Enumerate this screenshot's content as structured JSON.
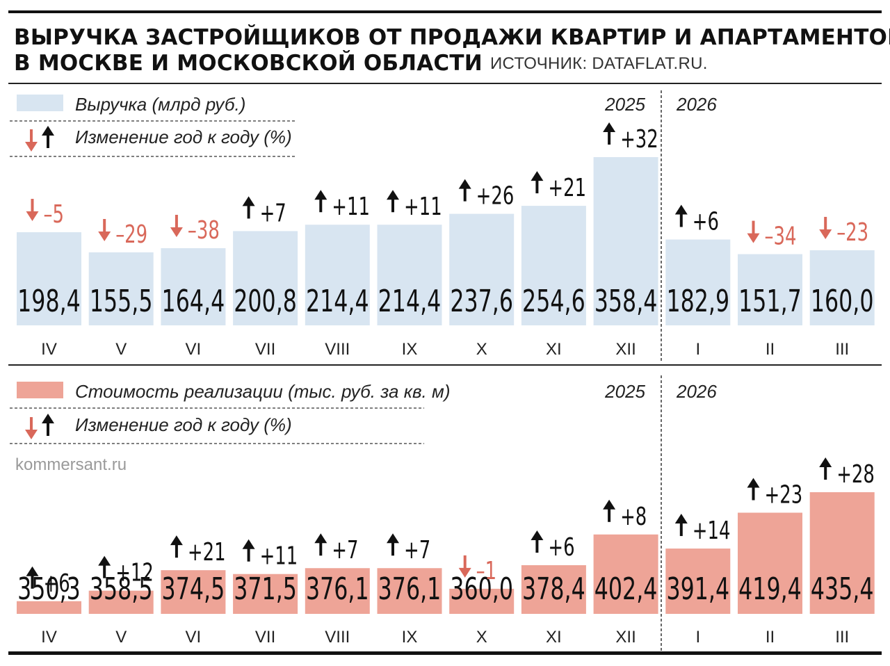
{
  "header": {
    "title_line1": "ВЫРУЧКА ЗАСТРОЙЩИКОВ ОТ ПРОДАЖИ КВАРТИР И АПАРТАМЕНТОВ",
    "title_line2": "В МОСКВЕ И МОСКОВСКОЙ ОБЛАСТИ",
    "source": "ИСТОЧНИК: DATAFLAT.RU."
  },
  "credit": "kommersant.ru",
  "colors": {
    "revenue_bar": "#d8e5f1",
    "price_bar": "#eea497",
    "increase": "#111111",
    "decrease": "#d9685a"
  },
  "chart_data": [
    {
      "type": "bar",
      "legend_value": "Выручка (млрд руб.)",
      "legend_change": "Изменение год к году (%)",
      "years": [
        "2025",
        "2026"
      ],
      "categories": [
        "IV",
        "V",
        "VI",
        "VII",
        "VIII",
        "IX",
        "X",
        "XI",
        "XII",
        "I",
        "II",
        "III"
      ],
      "values": [
        198.4,
        155.5,
        164.4,
        200.8,
        214.4,
        214.4,
        237.6,
        254.6,
        358.4,
        182.9,
        151.7,
        160.0
      ],
      "value_labels": [
        "198,4",
        "155,5",
        "164,4",
        "200,8",
        "214,4",
        "214,4",
        "237,6",
        "254,6",
        "358,4",
        "182,9",
        "151,7",
        "160,0"
      ],
      "change_labels": [
        "–5",
        "–29",
        "–38",
        "+7",
        "+11",
        "+11",
        "+26",
        "+21",
        "+32",
        "+6",
        "–34",
        "–23"
      ],
      "change_directions": [
        "down",
        "down",
        "down",
        "up",
        "up",
        "up",
        "up",
        "up",
        "up",
        "up",
        "down",
        "down"
      ]
    },
    {
      "type": "bar",
      "legend_value": "Стоимость реализации (тыс. руб. за кв. м)",
      "legend_change": "Изменение год к году (%)",
      "years": [
        "2025",
        "2026"
      ],
      "categories": [
        "IV",
        "V",
        "VI",
        "VII",
        "VIII",
        "IX",
        "X",
        "XI",
        "XII",
        "I",
        "II",
        "III"
      ],
      "values": [
        350.3,
        358.5,
        374.5,
        371.5,
        376.1,
        376.1,
        360.0,
        378.4,
        402.4,
        391.4,
        419.4,
        435.4
      ],
      "value_labels": [
        "350,3",
        "358,5",
        "374,5",
        "371,5",
        "376,1",
        "376,1",
        "360,0",
        "378,4",
        "402,4",
        "391,4",
        "419,4",
        "435,4"
      ],
      "change_labels": [
        "+6",
        "+12",
        "+21",
        "+11",
        "+7",
        "+7",
        "–1",
        "+6",
        "+8",
        "+14",
        "+23",
        "+28"
      ],
      "change_directions": [
        "up",
        "up",
        "up",
        "up",
        "up",
        "up",
        "down",
        "up",
        "up",
        "up",
        "up",
        "up"
      ]
    }
  ]
}
